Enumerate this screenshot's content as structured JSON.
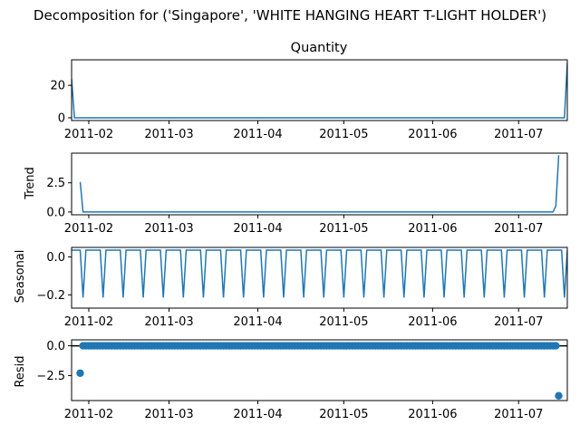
{
  "figure": {
    "suptitle": "Decomposition for ('Singapore', 'WHITE HANGING HEART T-LIGHT HOLDER')",
    "line_color": "#1f77b4",
    "x_tick_labels": [
      "2011-02",
      "2011-03",
      "2011-04",
      "2011-05",
      "2011-06",
      "2011-07"
    ]
  },
  "chart_data": [
    {
      "type": "line",
      "title": "Quantity",
      "ylabel": "",
      "xlim": [
        "2011-01-26",
        "2011-07-18"
      ],
      "ylim": [
        -1.7,
        35.7
      ],
      "ytick_labels": [
        "0",
        "20"
      ],
      "ytick_values": [
        0,
        20
      ],
      "series": [
        {
          "x": [
            "2011-01-26",
            "2011-01-27",
            "2011-07-17",
            "2011-07-18"
          ],
          "y": [
            24,
            0,
            0,
            34
          ]
        }
      ]
    },
    {
      "type": "line",
      "title": "",
      "ylabel": "Trend",
      "xlim": [
        "2011-01-26",
        "2011-07-18"
      ],
      "ylim": [
        -0.24,
        5.04
      ],
      "ytick_labels": [
        "0.0",
        "2.5"
      ],
      "ytick_values": [
        0,
        2.5
      ],
      "series": [
        {
          "x": [
            "2011-01-29",
            "2011-01-30",
            "2011-07-13",
            "2011-07-14",
            "2011-07-15"
          ],
          "y": [
            2.57,
            0,
            0,
            0.5,
            4.86
          ]
        }
      ]
    },
    {
      "type": "line",
      "title": "",
      "ylabel": "Seasonal",
      "xlim": [
        "2011-01-26",
        "2011-07-18"
      ],
      "ylim": [
        -0.27,
        0.05
      ],
      "ytick_labels": [
        "0.0",
        "−0.2"
      ],
      "ytick_values": [
        0,
        -0.2
      ],
      "series": [
        {
          "start": "2011-01-26",
          "end": "2011-07-18",
          "period_days": 7,
          "pattern": [
            0.0357,
            0.0357,
            0.0357,
            0.0357,
            0.0357,
            0.0357,
            -0.2143
          ],
          "phase_offset": 2
        }
      ]
    },
    {
      "type": "scatter",
      "title": "",
      "ylabel": "Resid",
      "xlim": [
        "2011-01-26",
        "2011-07-18"
      ],
      "ylim": [
        -4.6,
        0.5
      ],
      "ytick_labels": [
        "0.0",
        "−2.5"
      ],
      "ytick_values": [
        0,
        -2.5
      ],
      "baseline": 0,
      "points": {
        "first": {
          "x": "2011-01-29",
          "y": -2.3
        },
        "range_start": "2011-01-30",
        "range_end": "2011-07-14",
        "range_value": 0,
        "last": {
          "x": "2011-07-15",
          "y": -4.2
        }
      }
    }
  ]
}
